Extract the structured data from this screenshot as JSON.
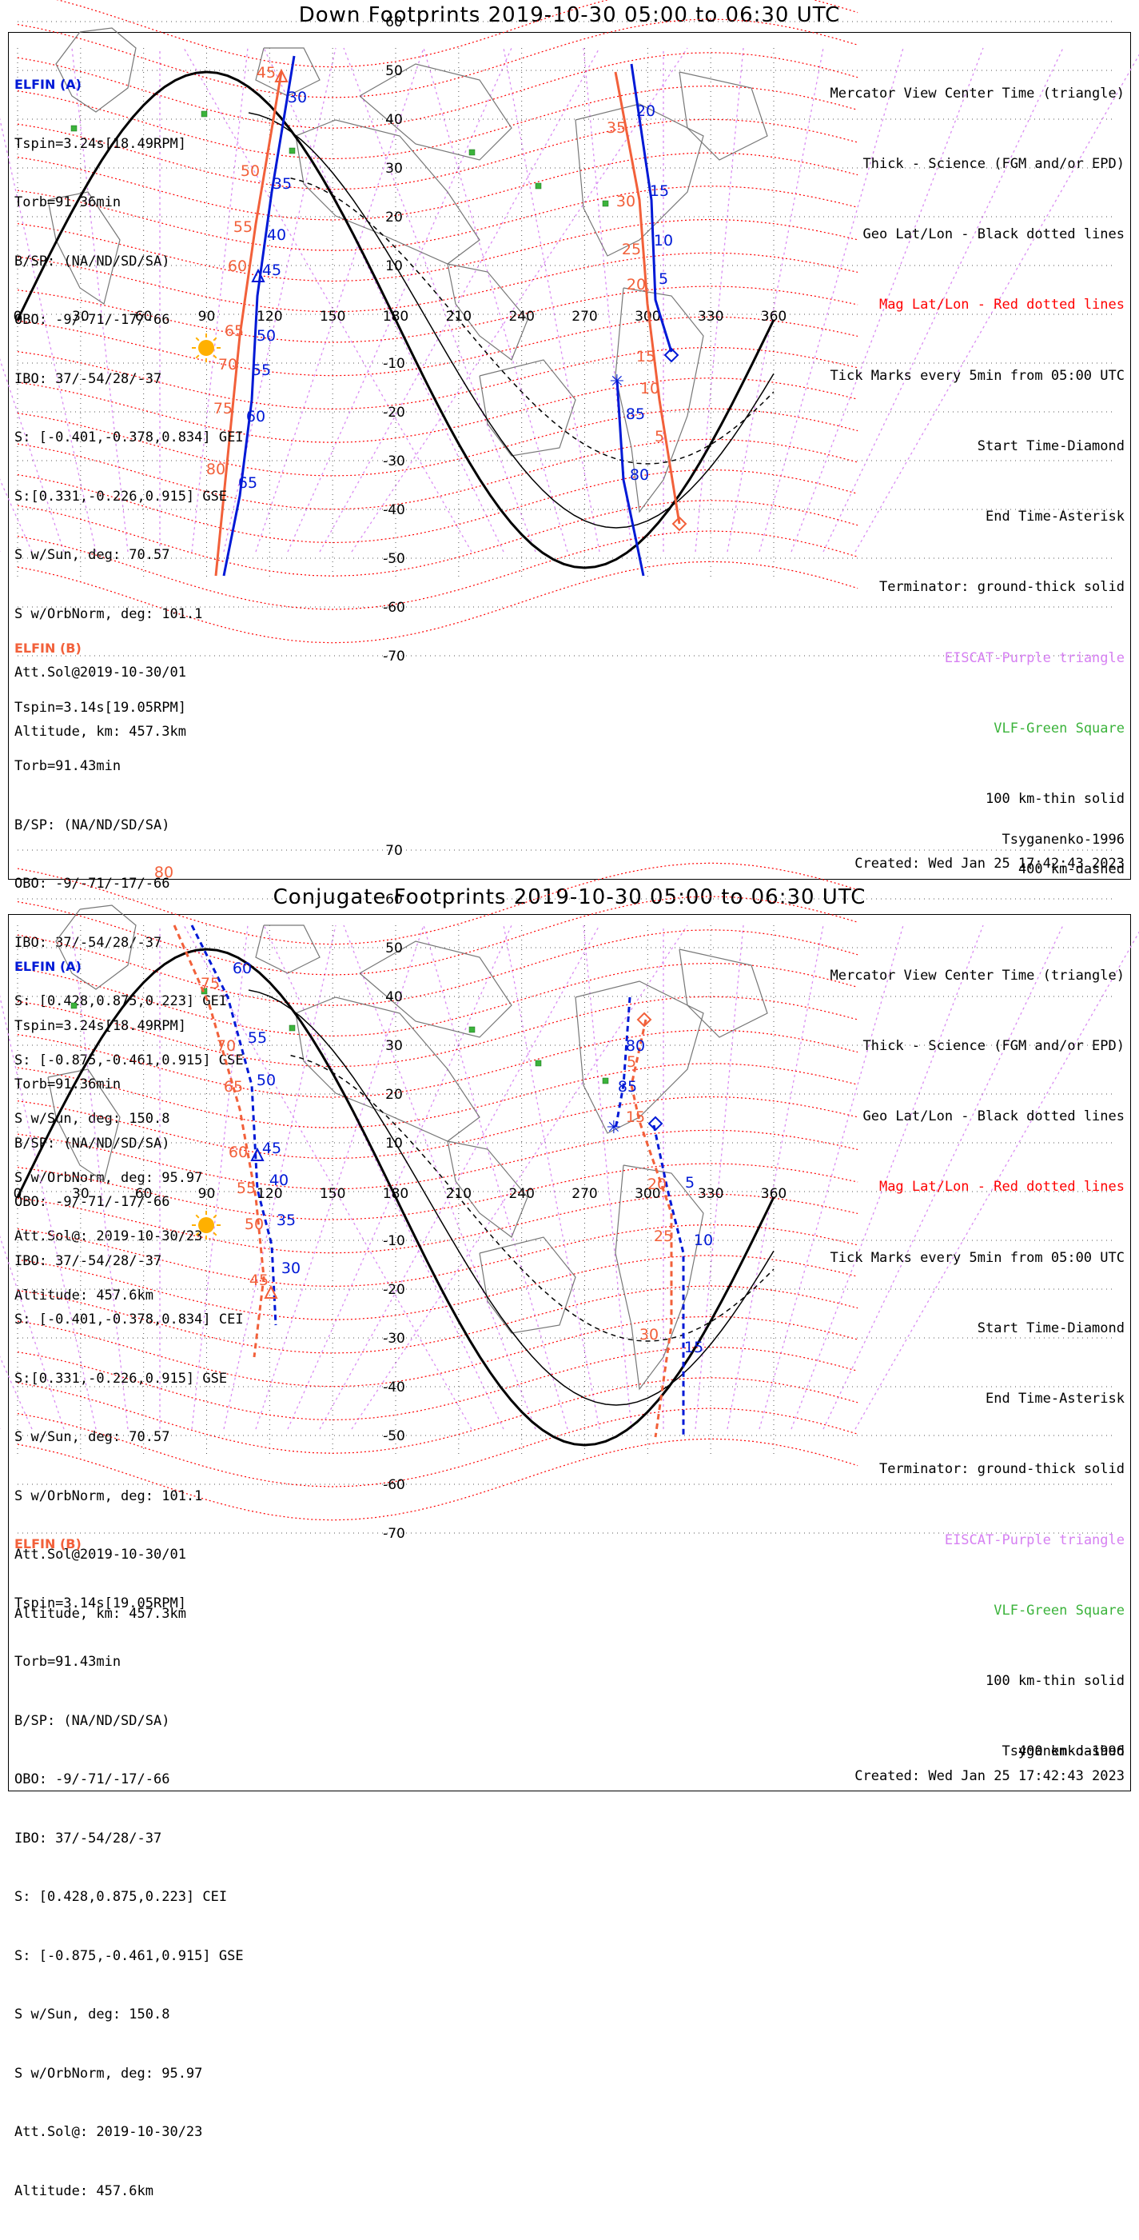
{
  "colors": {
    "elfin_a": "#0019d6",
    "elfin_b": "#f2603a",
    "mag_grid": "#ff0000",
    "geo_grid": "#000000",
    "eiscat": "#d680f2",
    "vlf": "#3bb33b",
    "sun": "#ffb000"
  },
  "panels": [
    {
      "id": "down",
      "title": "Down Footprints 2019-10-30 05:00 to 06:30 UTC",
      "elfin_a": {
        "header": "ELFIN (A)",
        "lines": [
          "Tspin=3.24s[18.49RPM]",
          "Torb=91.36min",
          "B/SP: (NA/ND/SD/SA)",
          "OBO: -9/-71/-17/-66",
          "IBO: 37/-54/28/-37",
          "S: [-0.401,-0.378,0.834] GEI",
          "S:[0.331,-0.226,0.915] GSE",
          "S w/Sun, deg: 70.57",
          "S w/OrbNorm, deg: 101.1",
          "Att.Sol@2019-10-30/01",
          "Altitude, km: 457.3km"
        ]
      },
      "elfin_b": {
        "header": "ELFIN (B)",
        "lines": [
          "Tspin=3.14s[19.05RPM]",
          "Torb=91.43min",
          "B/SP: (NA/ND/SD/SA)",
          "OBO: -9/-71/-17/-66",
          "IBO: 37/-54/28/-37",
          "S: [0.428,0.875,0.223] GEI",
          "S: [-0.875,-0.461,0.915] GSE",
          "S w/Sun, deg: 150.8",
          "S w/OrbNorm, deg: 95.97",
          "Att.Sol@: 2019-10-30/23",
          "Altitude: 457.6km"
        ]
      },
      "legend": [
        "Mercator View Center Time (triangle)",
        "Thick - Science (FGM and/or EPD)",
        "Geo Lat/Lon - Black dotted lines",
        "Mag Lat/Lon - Red dotted lines",
        "Tick Marks every 5min from 05:00 UTC",
        "Start Time-Diamond",
        "End Time-Asterisk",
        "Terminator: ground-thick solid",
        "EISCAT-Purple triangle",
        "VLF-Green Square",
        "100 km-thin solid",
        "400 km-dashed"
      ],
      "model": "Tsyganenko-1996",
      "created": "Created: Wed Jan 25 17:42:43 2023",
      "lon_ticks": [
        "0",
        "30",
        "60",
        "90",
        "120",
        "150",
        "180",
        "210",
        "240",
        "270",
        "300",
        "330",
        "360"
      ],
      "lat_ticks": [
        "70",
        "60",
        "50",
        "40",
        "30",
        "20",
        "10",
        "-10",
        "-20",
        "-30",
        "-40",
        "-50",
        "-60",
        "-70"
      ],
      "track_a_labels": [
        "30",
        "35",
        "40",
        "45",
        "50",
        "55",
        "60",
        "65",
        "5",
        "10",
        "15",
        "20",
        "80",
        "85"
      ],
      "track_b_labels": [
        "45",
        "50",
        "55",
        "60",
        "65",
        "70",
        "75",
        "80",
        "5",
        "10",
        "15",
        "20",
        "25",
        "30",
        "35"
      ]
    },
    {
      "id": "conjugate",
      "title": "Conjugate Footprints 2019-10-30 05:00 to 06:30 UTC",
      "elfin_a": {
        "header": "ELFIN (A)",
        "lines": [
          "Tspin=3.24s[18.49RPM]",
          "Torb=91.36min",
          "B/SP: (NA/ND/SD/SA)",
          "OBO: -9/-71/-17/-66",
          "IBO: 37/-54/28/-37",
          "S: [-0.401,-0.378,0.834] CEI",
          "S:[0.331,-0.226,0.915] GSE",
          "S w/Sun, deg: 70.57",
          "S w/OrbNorm, deg: 101.1",
          "Att.Sol@2019-10-30/01",
          "Altitude, km: 457.3km"
        ]
      },
      "elfin_b": {
        "header": "ELFIN (B)",
        "lines": [
          "Tspin=3.14s[19.05RPM]",
          "Torb=91.43min",
          "B/SP: (NA/ND/SD/SA)",
          "OBO: -9/-71/-17/-66",
          "IBO: 37/-54/28/-37",
          "S: [0.428,0.875,0.223] CEI",
          "S: [-0.875,-0.461,0.915] GSE",
          "S w/Sun, deg: 150.8",
          "S w/OrbNorm, deg: 95.97",
          "Att.Sol@: 2019-10-30/23",
          "Altitude: 457.6km"
        ]
      },
      "legend": [
        "Mercator View Center Time (triangle)",
        "Thick - Science (FGM and/or EPD)",
        "Geo Lat/Lon - Black dotted lines",
        "Mag Lat/Lon - Red dotted lines",
        "Tick Marks every 5min from 05:00 UTC",
        "Start Time-Diamond",
        "End Time-Asterisk",
        "Terminator: ground-thick solid",
        "EISCAT-Purple triangle",
        "VLF-Green Square",
        "100 km-thin solid",
        "400 km-dashed"
      ],
      "model": "Tsyganenko-1996",
      "created": "Created: Wed Jan 25 17:42:43 2023",
      "lon_ticks": [
        "0",
        "30",
        "60",
        "90",
        "120",
        "150",
        "180",
        "210",
        "240",
        "270",
        "300",
        "330",
        "360"
      ],
      "lat_ticks": [
        "70",
        "60",
        "50",
        "40",
        "30",
        "20",
        "10",
        "-10",
        "-20",
        "-30",
        "-40",
        "-50",
        "-60",
        "-70"
      ],
      "track_a_labels": [
        "60",
        "55",
        "50",
        "45",
        "40",
        "35",
        "30",
        "80",
        "85",
        "5",
        "10",
        "15"
      ],
      "track_b_labels": [
        "80",
        "75",
        "70",
        "65",
        "60",
        "55",
        "50",
        "45",
        "5",
        "15",
        "20",
        "25",
        "30"
      ]
    }
  ]
}
